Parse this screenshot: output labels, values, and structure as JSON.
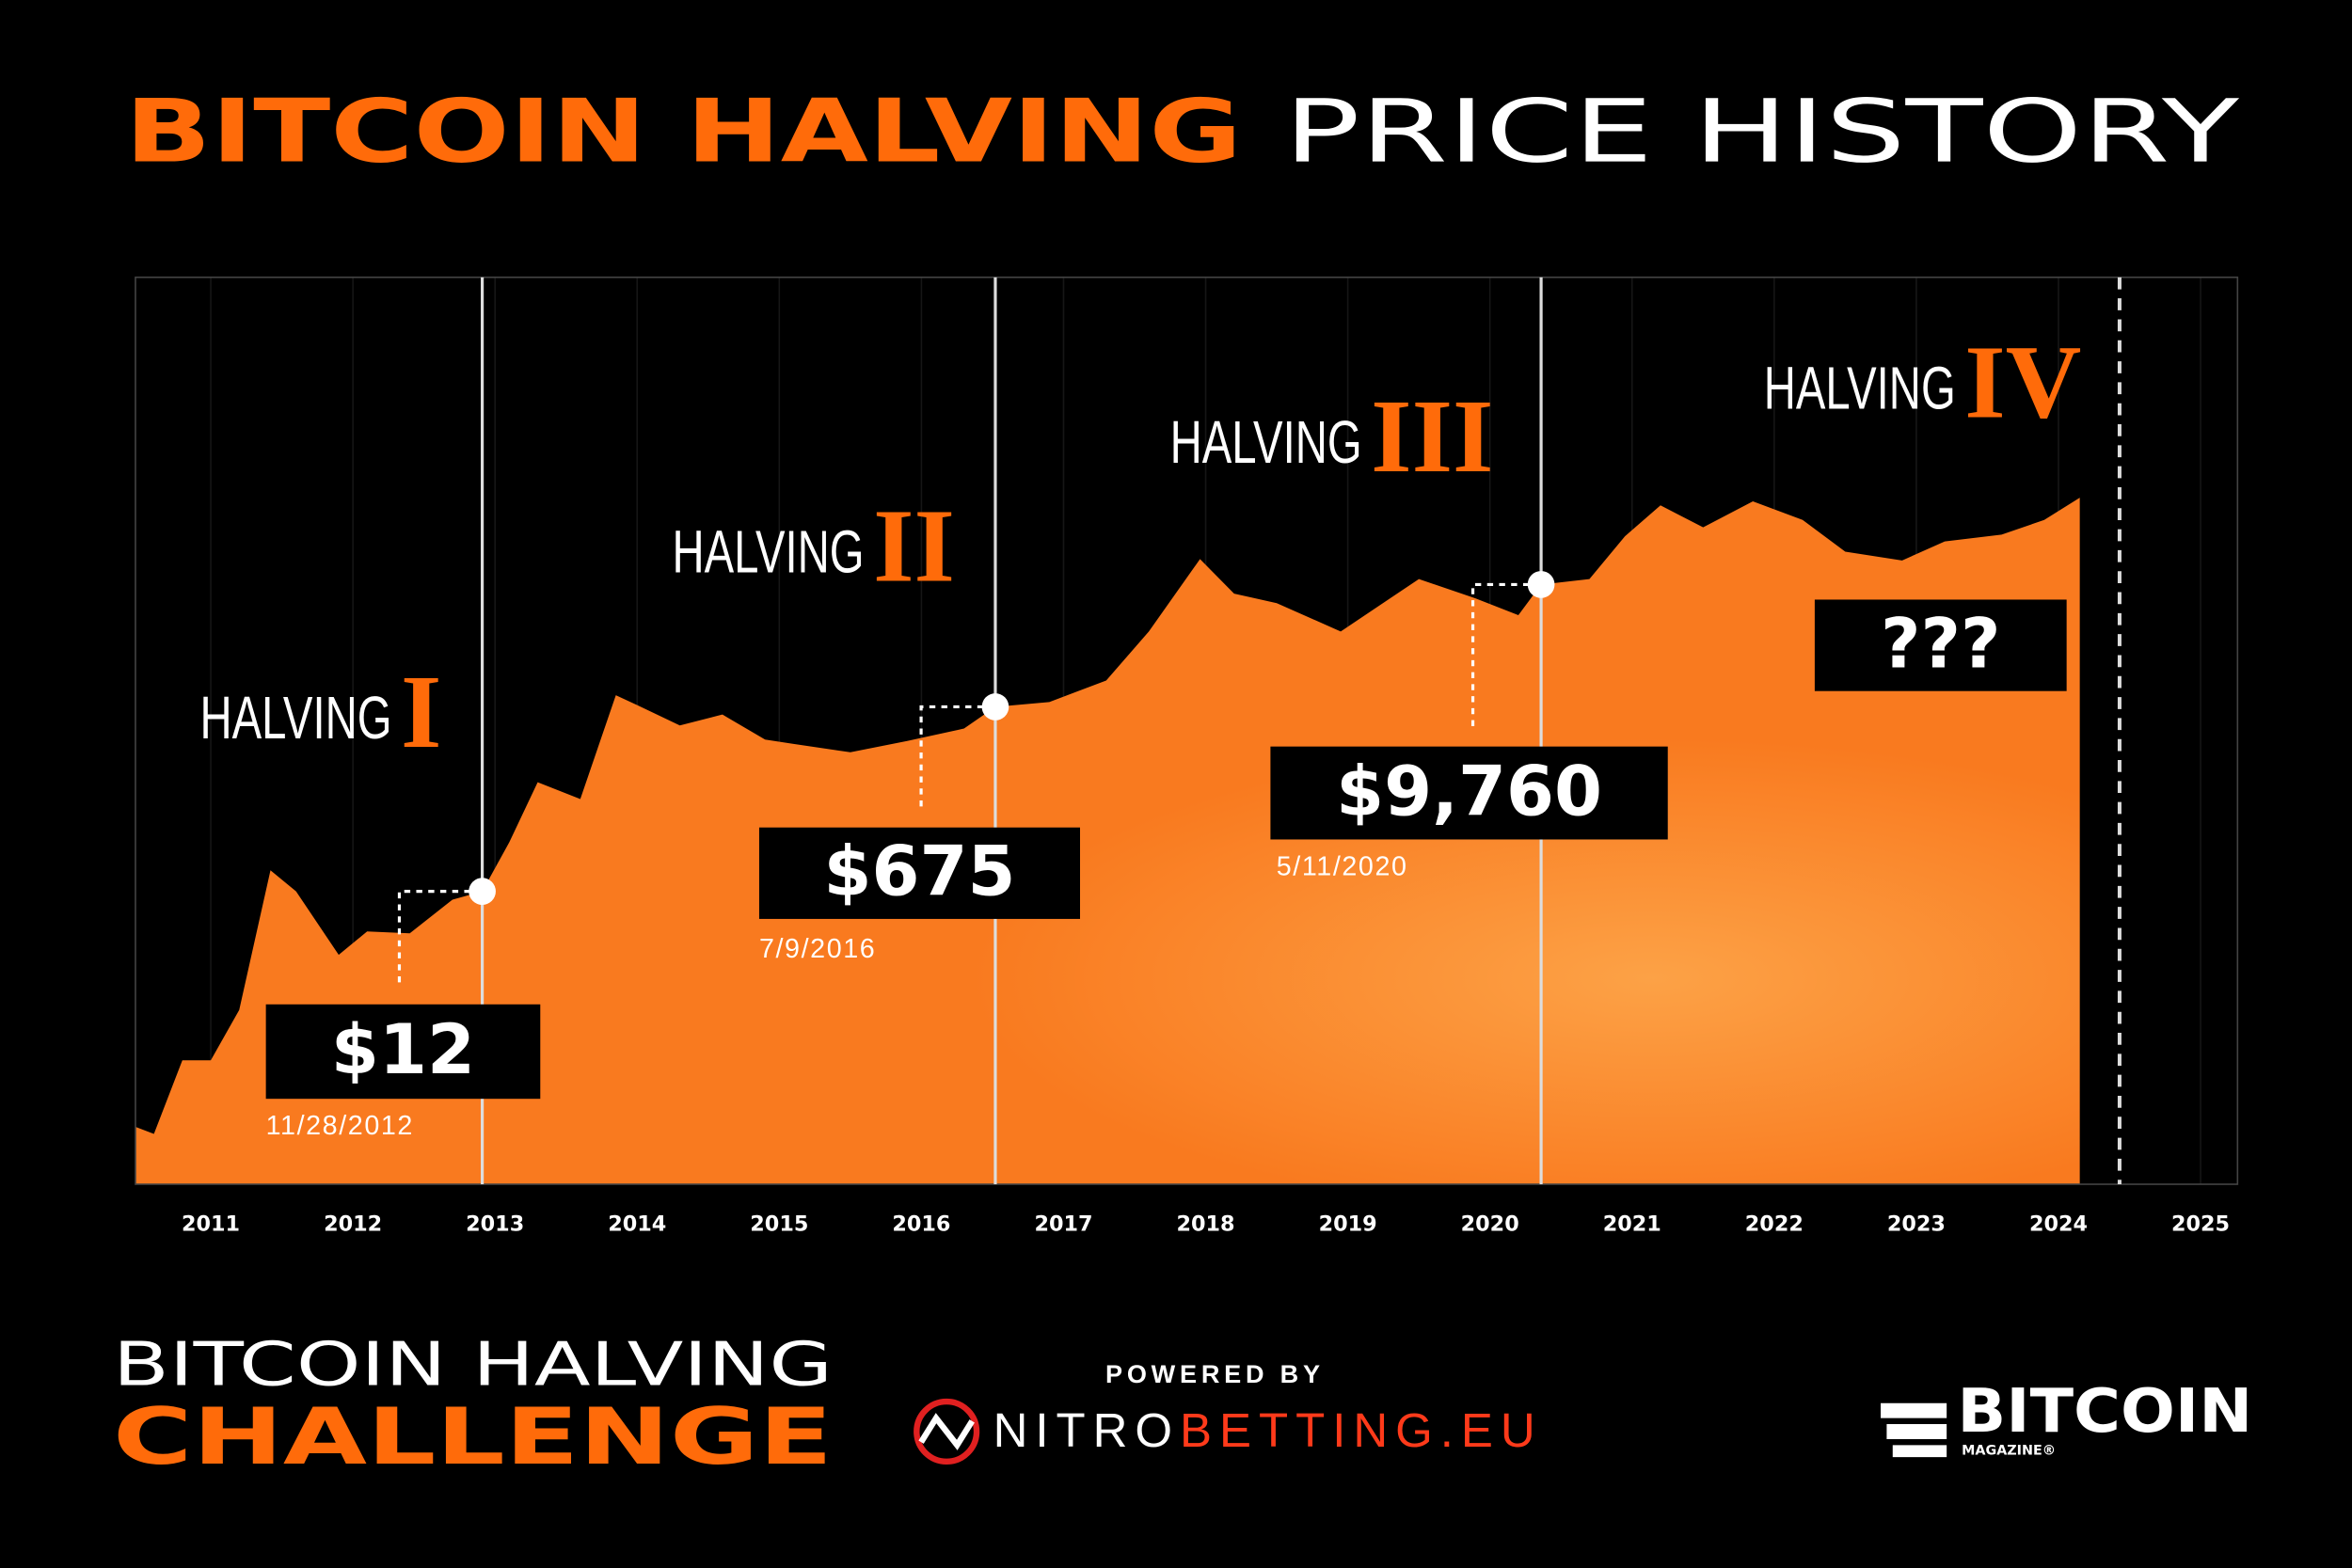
{
  "chart_data": {
    "type": "area",
    "title": {
      "highlight": "BITCOIN HALVING",
      "rest": "PRICE HISTORY"
    },
    "log_scale": true,
    "grid": true,
    "color": "#f97a1f",
    "xlim": [
      2010.47,
      2025.26
    ],
    "ylim": [
      0.02,
      8000000
    ],
    "xticks": [
      2011,
      2012,
      2013,
      2014,
      2015,
      2016,
      2017,
      2018,
      2019,
      2020,
      2021,
      2022,
      2023,
      2024,
      2025
    ],
    "x": [
      2010.47,
      2010.6,
      2010.8,
      2011.0,
      2011.2,
      2011.42,
      2011.6,
      2011.9,
      2012.1,
      2012.4,
      2012.7,
      2012.91,
      2013.1,
      2013.3,
      2013.6,
      2013.85,
      2014.0,
      2014.3,
      2014.6,
      2014.9,
      2015.1,
      2015.5,
      2015.9,
      2016.3,
      2016.52,
      2016.9,
      2017.3,
      2017.6,
      2017.96,
      2018.2,
      2018.5,
      2018.95,
      2019.5,
      2019.9,
      2020.2,
      2020.36,
      2020.7,
      2020.95,
      2021.2,
      2021.5,
      2021.85,
      2022.2,
      2022.5,
      2022.9,
      2023.2,
      2023.6,
      2023.9,
      2024.15
    ],
    "values": [
      0.07,
      0.06,
      0.3,
      0.3,
      0.9,
      19,
      12,
      3,
      5,
      4.8,
      10,
      12,
      35,
      130,
      90,
      870,
      700,
      450,
      570,
      330,
      300,
      250,
      320,
      420,
      675,
      750,
      1200,
      3500,
      17000,
      8000,
      6500,
      3500,
      11000,
      7200,
      5000,
      9760,
      11000,
      28000,
      55000,
      34000,
      60000,
      40000,
      20000,
      16500,
      25000,
      29000,
      40000,
      65000
    ],
    "halvings": [
      {
        "name": "HALVING",
        "numeral": "I",
        "x": 2012.91,
        "price": 12,
        "price_label": "$12",
        "date": "11/28/2012"
      },
      {
        "name": "HALVING",
        "numeral": "II",
        "x": 2016.52,
        "price": 675,
        "price_label": "$675",
        "date": "7/9/2016"
      },
      {
        "name": "HALVING",
        "numeral": "III",
        "x": 2020.36,
        "price": 9760,
        "price_label": "$9,760",
        "date": "5/11/2020"
      },
      {
        "name": "HALVING",
        "numeral": "IV",
        "x": 2024.43,
        "price_label": "???"
      }
    ]
  },
  "footer": {
    "challenge_line1": "BITCOIN HALVING",
    "challenge_line2": "CHALLENGE",
    "powered_by": "POWERED BY",
    "sponsor_white": "NITRO",
    "sponsor_orange": "BETTING.EU",
    "brand": "BITCOIN",
    "brand_sub": "MAGAZINE®"
  }
}
